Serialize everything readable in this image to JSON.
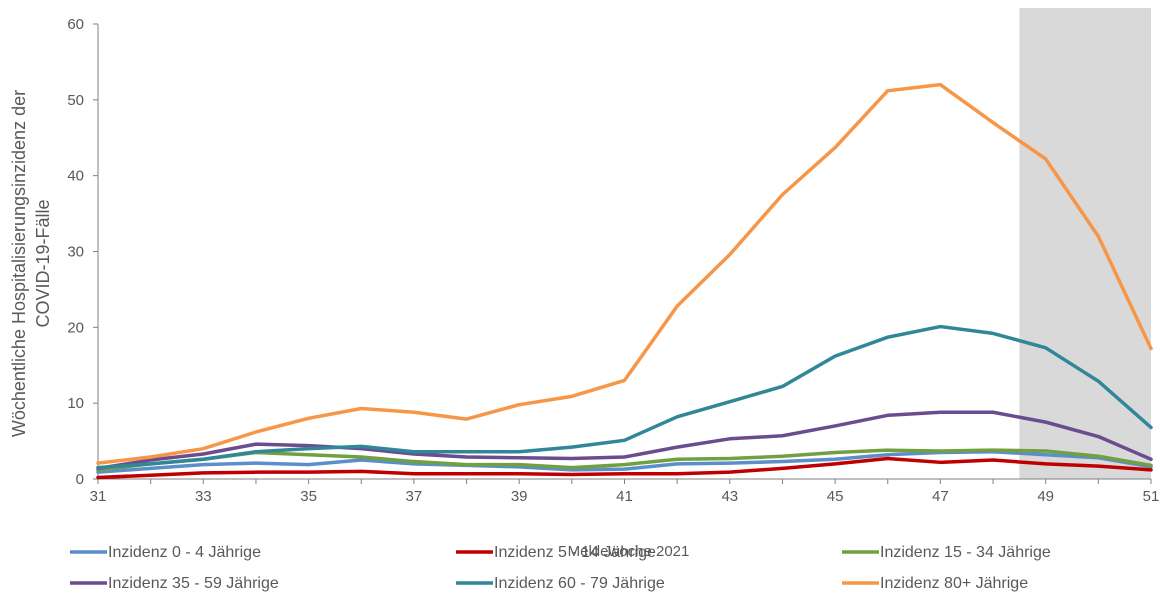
{
  "chart_data": {
    "type": "line",
    "title": "",
    "xlabel": "Meldewoche 2021",
    "ylabel": "Wöchentliche Hospitalisierungsinzidenz der COVID-19-Fälle",
    "ylabel_lines": [
      "Wöchentliche Hospitalisierungsinzidenz der",
      "COVID-19-Fälle"
    ],
    "x": [
      31,
      32,
      33,
      34,
      35,
      36,
      37,
      38,
      39,
      40,
      41,
      42,
      43,
      44,
      45,
      46,
      47,
      48,
      49,
      50,
      51
    ],
    "xlim": [
      31,
      51
    ],
    "ylim": [
      0,
      60
    ],
    "x_ticks": [
      31,
      33,
      35,
      37,
      39,
      41,
      43,
      45,
      47,
      49,
      51
    ],
    "y_ticks": [
      0,
      10,
      20,
      30,
      40,
      50,
      60
    ],
    "shaded_region": {
      "x_from": 48.5,
      "x_to": 51,
      "color": "#d9d9d9"
    },
    "grid": false,
    "legend_position": "bottom",
    "series": [
      {
        "name": "Inzidenz 0 - 4 Jährige",
        "color": "#5b8fc9",
        "values": [
          0.9,
          1.4,
          1.9,
          2.1,
          1.9,
          2.5,
          2.0,
          1.8,
          1.6,
          1.2,
          1.3,
          2.0,
          2.1,
          2.3,
          2.6,
          3.2,
          3.5,
          3.6,
          3.2,
          2.8,
          1.6
        ]
      },
      {
        "name": "Inzidenz 5 - 14 Jährige",
        "color": "#c00000",
        "values": [
          0.2,
          0.5,
          0.8,
          0.9,
          0.9,
          1.0,
          0.7,
          0.7,
          0.7,
          0.6,
          0.7,
          0.7,
          0.9,
          1.4,
          2.0,
          2.7,
          2.2,
          2.5,
          2.0,
          1.7,
          1.2
        ]
      },
      {
        "name": "Inzidenz 15 - 34 Jährige",
        "color": "#70a040",
        "values": [
          1.2,
          2.0,
          2.6,
          3.5,
          3.2,
          2.9,
          2.3,
          1.9,
          1.9,
          1.5,
          1.9,
          2.6,
          2.7,
          3.0,
          3.5,
          3.8,
          3.7,
          3.8,
          3.7,
          3.0,
          1.8
        ]
      },
      {
        "name": "Inzidenz 35 - 59 Jährige",
        "color": "#6b4c8f",
        "values": [
          1.4,
          2.5,
          3.3,
          4.6,
          4.4,
          4.0,
          3.3,
          2.9,
          2.8,
          2.7,
          2.9,
          4.2,
          5.3,
          5.7,
          7.0,
          8.4,
          8.8,
          8.8,
          7.5,
          5.6,
          2.6
        ]
      },
      {
        "name": "Inzidenz 60 - 79 Jährige",
        "color": "#2f8798",
        "values": [
          1.5,
          2.0,
          2.6,
          3.6,
          4.0,
          4.3,
          3.6,
          3.6,
          3.6,
          4.2,
          5.1,
          8.2,
          10.2,
          12.2,
          16.2,
          18.7,
          20.1,
          19.2,
          17.3,
          12.9,
          6.8
        ]
      },
      {
        "name": "Inzidenz 80+ Jährige",
        "color": "#f79646",
        "values": [
          2.1,
          2.9,
          4.0,
          6.2,
          8.0,
          9.3,
          8.8,
          7.9,
          9.8,
          10.9,
          13.0,
          22.8,
          29.6,
          37.5,
          43.7,
          51.2,
          52.0,
          47.0,
          42.2,
          32.0,
          17.2
        ]
      }
    ]
  }
}
